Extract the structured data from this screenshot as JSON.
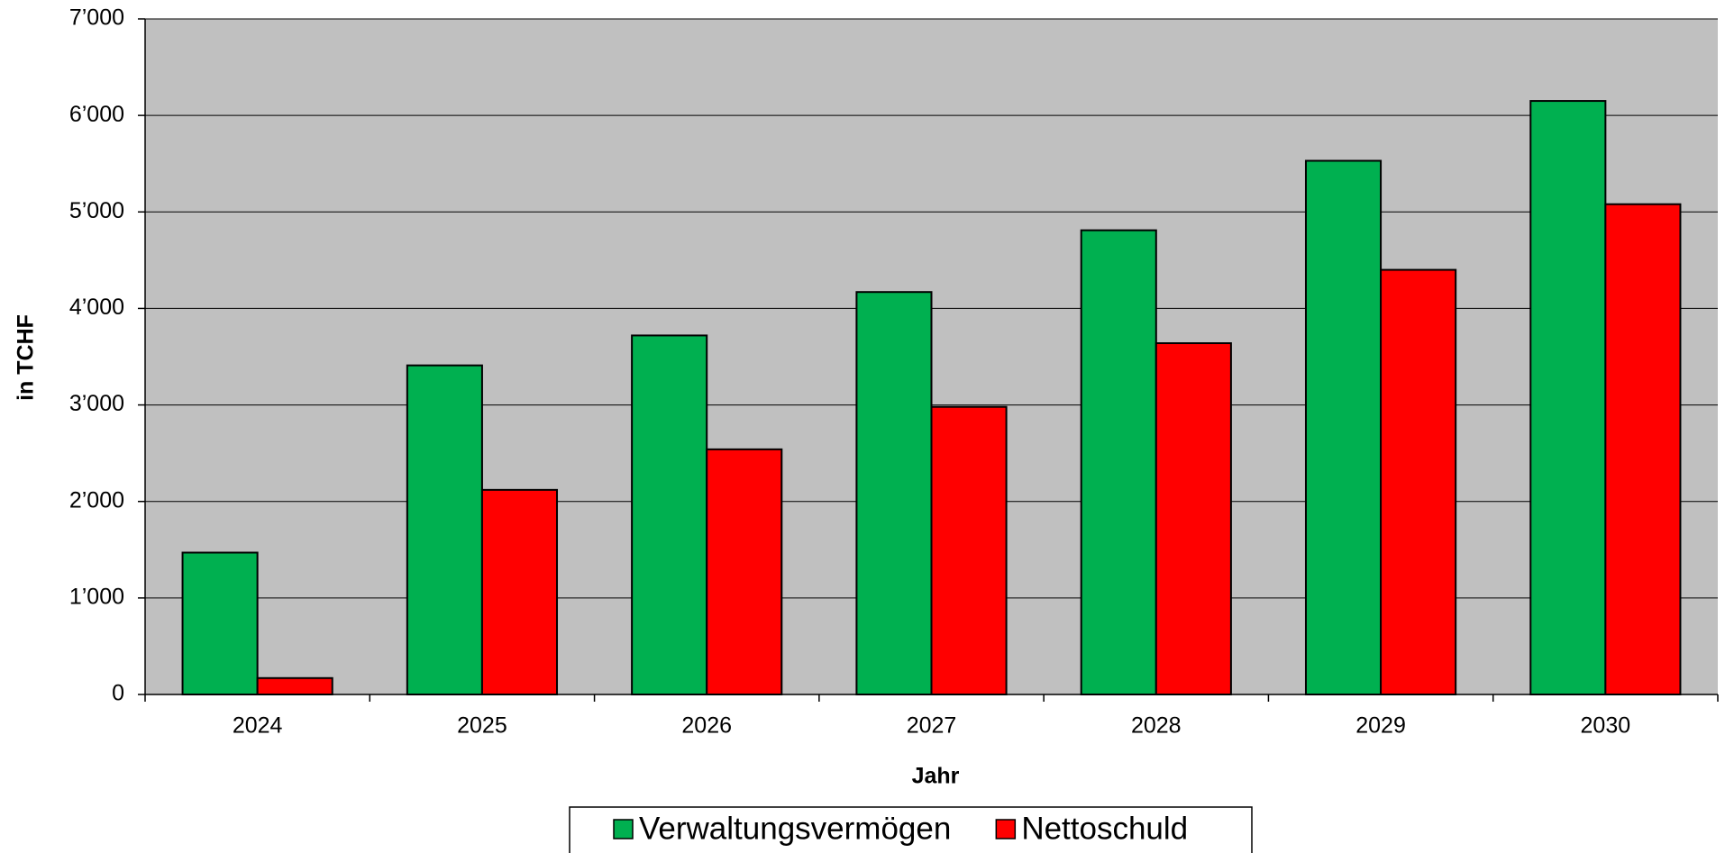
{
  "chart_data": {
    "type": "bar",
    "x_label": "Jahr",
    "y_label": "in TCHF",
    "categories": [
      "2024",
      "2025",
      "2026",
      "2027",
      "2028",
      "2029",
      "2030"
    ],
    "series": [
      {
        "name": "Verwaltungsvermögen",
        "color": "#00b050",
        "values": [
          1470,
          3410,
          3720,
          4170,
          4810,
          5530,
          6150
        ]
      },
      {
        "name": "Nettoschuld",
        "color": "#ff0000",
        "values": [
          170,
          2120,
          2540,
          2980,
          3640,
          4400,
          5080
        ]
      }
    ],
    "ylim": [
      0,
      7000
    ],
    "yticks": [
      0,
      {
        "value": 1000,
        "label": "1’000"
      },
      {
        "value": 2000,
        "label": "2’000"
      },
      {
        "value": 3000,
        "label": "3’000"
      },
      {
        "value": 4000,
        "label": "4’000"
      },
      {
        "value": 5000,
        "label": "5’000"
      },
      {
        "value": 6000,
        "label": "6’000"
      },
      {
        "value": 7000,
        "label": "7’000"
      }
    ],
    "grid": true,
    "legend": "bottom",
    "background": "#c0c0c0"
  }
}
